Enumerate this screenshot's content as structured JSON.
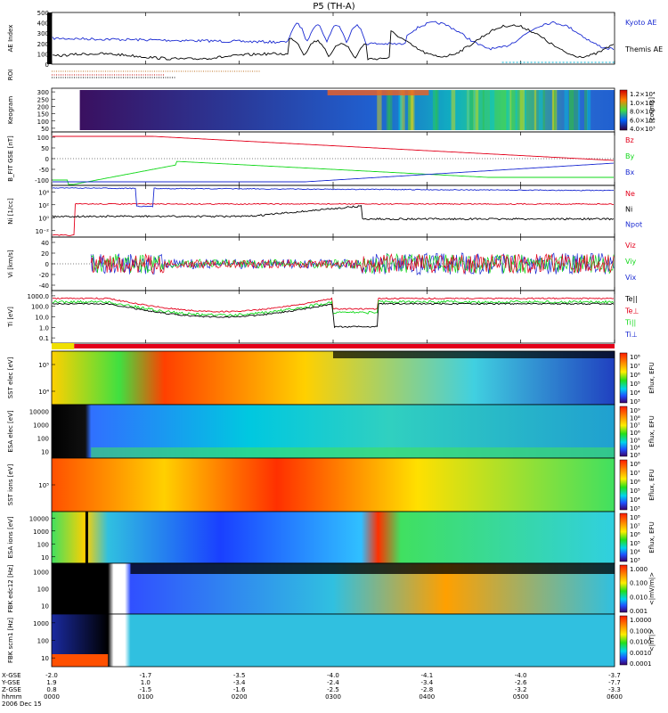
{
  "title": "P5 (TH-A)",
  "colors": {
    "red": "#e3001b",
    "green": "#12d81a",
    "blue": "#1b2bd2",
    "black": "#000000"
  },
  "chart_data": [
    {
      "type": "line",
      "panel": "ae",
      "ylabel": "AE Index",
      "ylim": [
        0,
        500
      ],
      "yticks": [
        "500",
        "400",
        "300",
        "200",
        "100",
        "0"
      ],
      "series": [
        {
          "name": "Kyoto AE",
          "color": "#1b2bd2"
        },
        {
          "name": "Themis AE",
          "color": "#000000"
        }
      ]
    },
    {
      "type": "heatmap",
      "panel": "roi",
      "ylabel": "ROI"
    },
    {
      "type": "heatmap",
      "panel": "keogram",
      "ylabel": "Keogram",
      "yticks": [
        "300",
        "250",
        "200",
        "150",
        "100",
        "50"
      ],
      "colorbar": {
        "label": "[counts]",
        "ticks": [
          "1.2×10⁴",
          "1.0×10⁴",
          "8.0×10³",
          "6.0×10³",
          "4.0×10³"
        ]
      }
    },
    {
      "type": "line",
      "panel": "bfit",
      "ylabel": "B_FIT GSE [nT]",
      "ylim": [
        -100,
        100
      ],
      "yticks": [
        "100",
        "50",
        "0",
        "-50",
        "-100"
      ],
      "series": [
        {
          "name": "Bz",
          "color": "#e3001b"
        },
        {
          "name": "By",
          "color": "#12d81a"
        },
        {
          "name": "Bx",
          "color": "#1b2bd2"
        }
      ]
    },
    {
      "type": "line",
      "panel": "density",
      "ylabel": "Ni [1/cc]",
      "log": true,
      "yticks": [
        "10⁴",
        "10²",
        "10⁰",
        "10⁻²"
      ],
      "series": [
        {
          "name": "Ne",
          "color": "#e3001b"
        },
        {
          "name": "Ni",
          "color": "#000000"
        },
        {
          "name": "Npot",
          "color": "#1b2bd2"
        }
      ]
    },
    {
      "type": "line",
      "panel": "velocity",
      "ylabel": "Vi [km/s]",
      "ylim": [
        -50,
        50
      ],
      "yticks": [
        "40",
        "20",
        "0",
        "-20",
        "-40"
      ],
      "series": [
        {
          "name": "Viz",
          "color": "#e3001b"
        },
        {
          "name": "Viy",
          "color": "#12d81a"
        },
        {
          "name": "Vix",
          "color": "#1b2bd2"
        }
      ]
    },
    {
      "type": "line",
      "panel": "temperature",
      "ylabel": "Ti [eV]",
      "log": true,
      "yticks": [
        "1000.0",
        "100.0",
        "10.0",
        "1.0",
        "0.1"
      ],
      "series": [
        {
          "name": "Te||",
          "color": "#000000"
        },
        {
          "name": "Te⊥",
          "color": "#e3001b"
        },
        {
          "name": "Ti||",
          "color": "#12d81a"
        },
        {
          "name": "Ti⊥",
          "color": "#1b2bd2"
        }
      ]
    },
    {
      "type": "heatmap",
      "panel": "sst_e",
      "ylabel": "SST elec [eV]",
      "yticks": [
        "10⁵",
        "10⁴"
      ],
      "colorbar": {
        "label": "Eflux, EFU",
        "ticks": [
          "10⁸",
          "10⁷",
          "10⁶",
          "10⁵",
          "10⁴",
          "10³"
        ]
      }
    },
    {
      "type": "heatmap",
      "panel": "esa_e",
      "ylabel": "ESA elec [eV]",
      "yticks": [
        "10000",
        "1000",
        "100",
        "10"
      ],
      "colorbar": {
        "label": "Eflux, EFU",
        "ticks": [
          "10⁹",
          "10⁸",
          "10⁷",
          "10⁶",
          "10⁵",
          "10⁴",
          "10³"
        ]
      }
    },
    {
      "type": "heatmap",
      "panel": "sst_i",
      "ylabel": "SST ions [eV]",
      "yticks": [
        "10⁵"
      ],
      "colorbar": {
        "label": "Eflux, EFU",
        "ticks": [
          "10⁸",
          "10⁷",
          "10⁶",
          "10⁵",
          "10⁴",
          "10³"
        ]
      }
    },
    {
      "type": "heatmap",
      "panel": "esa_i",
      "ylabel": "ESA ions [eV]",
      "yticks": [
        "10000",
        "1000",
        "100",
        "10"
      ],
      "colorbar": {
        "label": "Eflux, EFU",
        "ticks": [
          "10⁸",
          "10⁷",
          "10⁶",
          "10⁵",
          "10⁴",
          "10³"
        ]
      }
    },
    {
      "type": "heatmap",
      "panel": "fbk_e",
      "ylabel": "FBK edc12 [Hz]",
      "yticks": [
        "1000",
        "100",
        "10"
      ],
      "colorbar": {
        "label": "<|mV/m|>",
        "ticks": [
          "1.000",
          "0.100",
          "0.010",
          "0.001"
        ]
      }
    },
    {
      "type": "heatmap",
      "panel": "fbk_b",
      "ylabel": "FBK scm1 [Hz]",
      "yticks": [
        "1000",
        "100",
        "10"
      ],
      "colorbar": {
        "label": "<|nT|>",
        "ticks": [
          "1.0000",
          "0.1000",
          "0.0100",
          "0.0010",
          "0.0001"
        ]
      }
    }
  ],
  "xaxis": {
    "row_labels": [
      "X-GSE",
      "Y-GSE",
      "Z-GSE",
      "hhmm",
      "2006 Dec 15"
    ],
    "ticks": [
      {
        "x": "-2.0",
        "y": "1.9",
        "z": "0.8",
        "t": "0000"
      },
      {
        "x": "-1.7",
        "y": "1.0",
        "z": "-1.5",
        "t": "0100"
      },
      {
        "x": "-3.5",
        "y": "-3.4",
        "z": "-1.6",
        "t": "0200"
      },
      {
        "x": "-4.0",
        "y": "-2.4",
        "z": "-2.5",
        "t": "0300"
      },
      {
        "x": "-4.1",
        "y": "-3.4",
        "z": "-2.8",
        "t": "0400"
      },
      {
        "x": "-4.0",
        "y": "-2.6",
        "z": "-3.2",
        "t": "0500"
      },
      {
        "x": "-3.7",
        "y": "-7.7",
        "z": "-3.3",
        "t": "0600"
      }
    ]
  }
}
